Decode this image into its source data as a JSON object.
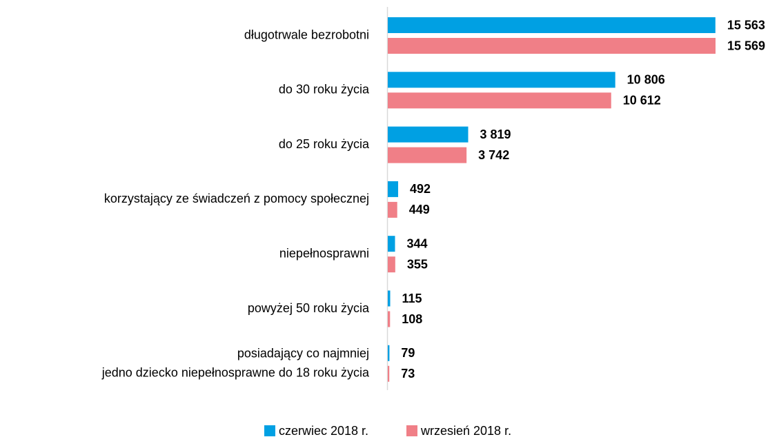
{
  "chart_data": {
    "type": "bar",
    "orientation": "horizontal",
    "categories": [
      "długotrwale bezrobotni",
      "do 30 roku życia",
      "do 25 roku życia",
      "korzystający ze świadczeń z pomocy społecznej",
      "niepełnosprawni",
      "powyżej 50 roku życia",
      "posiadający co najmniej\njedno dziecko niepełnosprawne do 18 roku życia"
    ],
    "series": [
      {
        "name": "czerwiec 2018 r.",
        "color": "#00a0e3",
        "values": [
          15563,
          10806,
          3819,
          492,
          344,
          115,
          79
        ],
        "value_labels": [
          "15 563",
          "10 806",
          "3 819",
          "492",
          "344",
          "115",
          "79"
        ]
      },
      {
        "name": "wrzesień 2018 r.",
        "color": "#f07f87",
        "values": [
          15569,
          10612,
          3742,
          449,
          355,
          108,
          73
        ],
        "value_labels": [
          "15 569",
          "10 612",
          "3 742",
          "449",
          "355",
          "108",
          "73"
        ]
      }
    ],
    "legend": "bottom"
  }
}
